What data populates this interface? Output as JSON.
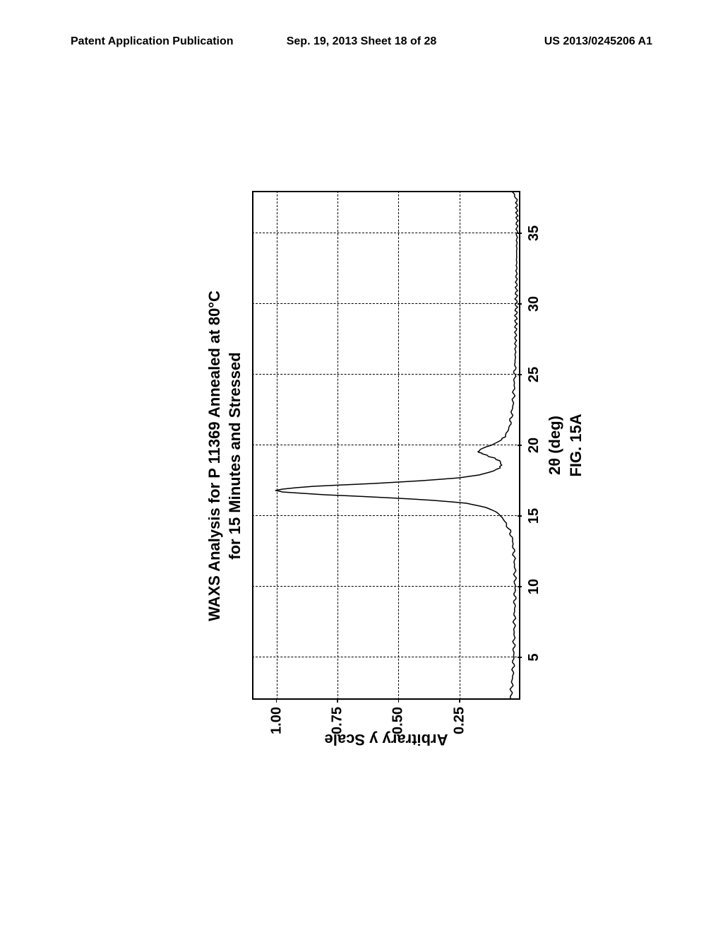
{
  "header": {
    "left": "Patent Application Publication",
    "center": "Sep. 19, 2013  Sheet 18 of 28",
    "right": "US 2013/0245206 A1"
  },
  "chart": {
    "type": "line",
    "title_line1": "WAXS Analysis for P 11369 Annealed at 80°C",
    "title_line2": "for 15 Minutes and Stressed",
    "ylabel": "Arbitrary y Scale",
    "xlabel": "2θ (deg)",
    "fig_label": "FIG. 15A",
    "xlim": [
      2,
      38
    ],
    "ylim": [
      0,
      1.1
    ],
    "xticks": [
      5,
      10,
      15,
      20,
      25,
      30,
      35
    ],
    "yticks": [
      0.25,
      0.5,
      0.75,
      1.0
    ],
    "ytick_labels": [
      "0.25",
      "0.50",
      "0.75",
      "1.00"
    ],
    "background_color": "#ffffff",
    "grid_color": "#000000",
    "line_color": "#000000",
    "line_width": 1.5,
    "title_fontsize": 22,
    "label_fontsize": 22,
    "tick_fontsize": 20,
    "data": [
      [
        2.0,
        0.04
      ],
      [
        3.0,
        0.035
      ],
      [
        4.0,
        0.03
      ],
      [
        5.0,
        0.028
      ],
      [
        6.0,
        0.026
      ],
      [
        7.0,
        0.025
      ],
      [
        8.0,
        0.024
      ],
      [
        9.0,
        0.023
      ],
      [
        10.0,
        0.022
      ],
      [
        11.0,
        0.022
      ],
      [
        12.0,
        0.025
      ],
      [
        13.0,
        0.03
      ],
      [
        13.5,
        0.035
      ],
      [
        14.0,
        0.045
      ],
      [
        14.5,
        0.06
      ],
      [
        15.0,
        0.08
      ],
      [
        15.3,
        0.1
      ],
      [
        15.6,
        0.14
      ],
      [
        15.9,
        0.22
      ],
      [
        16.1,
        0.35
      ],
      [
        16.3,
        0.55
      ],
      [
        16.5,
        0.8
      ],
      [
        16.7,
        0.98
      ],
      [
        16.8,
        1.0
      ],
      [
        16.9,
        0.98
      ],
      [
        17.1,
        0.85
      ],
      [
        17.3,
        0.6
      ],
      [
        17.5,
        0.4
      ],
      [
        17.7,
        0.25
      ],
      [
        17.9,
        0.17
      ],
      [
        18.1,
        0.125
      ],
      [
        18.3,
        0.095
      ],
      [
        18.5,
        0.08
      ],
      [
        18.8,
        0.08
      ],
      [
        19.0,
        0.095
      ],
      [
        19.2,
        0.125
      ],
      [
        19.4,
        0.155
      ],
      [
        19.5,
        0.17
      ],
      [
        19.6,
        0.17
      ],
      [
        19.8,
        0.155
      ],
      [
        20.0,
        0.12
      ],
      [
        20.3,
        0.085
      ],
      [
        20.6,
        0.065
      ],
      [
        21.0,
        0.05
      ],
      [
        21.5,
        0.042
      ],
      [
        22.0,
        0.037
      ],
      [
        23.0,
        0.03
      ],
      [
        24.0,
        0.026
      ],
      [
        25.0,
        0.023
      ],
      [
        26.0,
        0.021
      ],
      [
        28.0,
        0.019
      ],
      [
        30.0,
        0.017
      ],
      [
        32.0,
        0.016
      ],
      [
        34.0,
        0.015
      ],
      [
        36.0,
        0.014
      ],
      [
        37.5,
        0.016
      ],
      [
        38.0,
        0.04
      ]
    ]
  }
}
